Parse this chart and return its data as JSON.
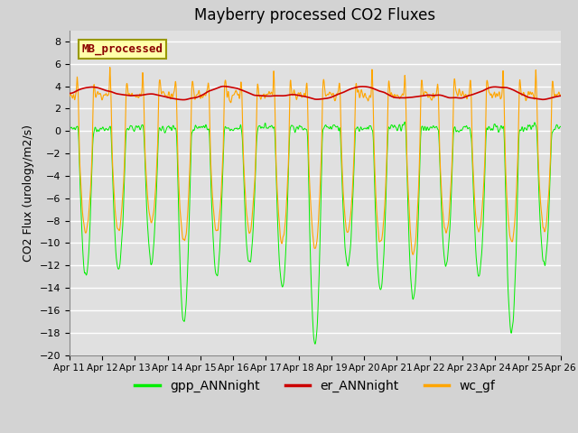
{
  "title": "Mayberry processed CO2 Fluxes",
  "ylabel": "CO2 Flux (urology/m2/s)",
  "ylim": [
    -20,
    9
  ],
  "yticks": [
    -20,
    -18,
    -16,
    -14,
    -12,
    -10,
    -8,
    -6,
    -4,
    -2,
    0,
    2,
    4,
    6,
    8
  ],
  "xlabel_dates": [
    "Apr 11",
    "Apr 12",
    "Apr 13",
    "Apr 14",
    "Apr 15",
    "Apr 16",
    "Apr 17",
    "Apr 18",
    "Apr 19",
    "Apr 20",
    "Apr 21",
    "Apr 22",
    "Apr 23",
    "Apr 24",
    "Apr 25",
    "Apr 26"
  ],
  "color_gpp": "#00ee00",
  "color_er": "#cc0000",
  "color_wc": "#ffa500",
  "legend_label_gpp": "gpp_ANNnight",
  "legend_label_er": "er_ANNnight",
  "legend_label_wc": "wc_gf",
  "inset_label": "MB_processed",
  "background_color": "#d3d3d3",
  "plot_bg_color": "#e0e0e0",
  "title_fontsize": 12,
  "axis_fontsize": 9,
  "legend_fontsize": 10,
  "n_points": 3600,
  "days": 15,
  "seed": 42
}
